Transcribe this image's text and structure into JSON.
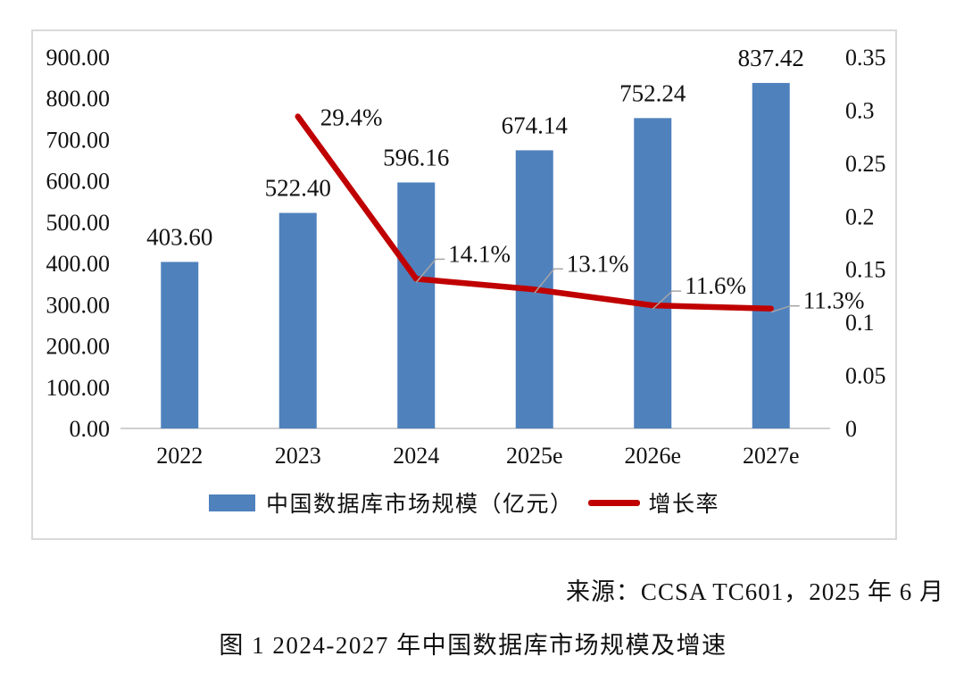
{
  "chart_data": {
    "type": "combo-bar-line",
    "categories": [
      "2022",
      "2023",
      "2024",
      "2025e",
      "2026e",
      "2027e"
    ],
    "series": [
      {
        "name": "中国数据库市场规模（亿元）",
        "type": "bar",
        "axis": "left",
        "values": [
          403.6,
          522.4,
          596.16,
          674.14,
          752.24,
          837.42
        ],
        "labels": [
          "403.60",
          "522.40",
          "596.16",
          "674.14",
          "752.24",
          "837.42"
        ],
        "color": "#4F81BD"
      },
      {
        "name": "增长率",
        "type": "line",
        "axis": "right",
        "values": [
          null,
          0.294,
          0.141,
          0.131,
          0.116,
          0.113
        ],
        "labels": [
          null,
          "29.4%",
          "14.1%",
          "13.1%",
          "11.6%",
          "11.3%"
        ],
        "color": "#C00000"
      }
    ],
    "left_axis": {
      "min": 0,
      "max": 900,
      "step": 100,
      "tick_labels": [
        "0.00",
        "100.00",
        "200.00",
        "300.00",
        "400.00",
        "500.00",
        "600.00",
        "700.00",
        "800.00",
        "900.00"
      ]
    },
    "right_axis": {
      "min": 0,
      "max": 0.35,
      "step": 0.05,
      "tick_labels": [
        "0",
        "0.05",
        "0.1",
        "0.15",
        "0.2",
        "0.25",
        "0.3",
        "0.35"
      ]
    },
    "grid": false,
    "legend_position": "bottom",
    "leader_line_color": "#A6A6A6",
    "axis_line_color": "#BFBFBF"
  },
  "source_text": "来源：CCSA TC601，2025 年 6 月",
  "caption": "图 1 2024-2027 年中国数据库市场规模及增速"
}
